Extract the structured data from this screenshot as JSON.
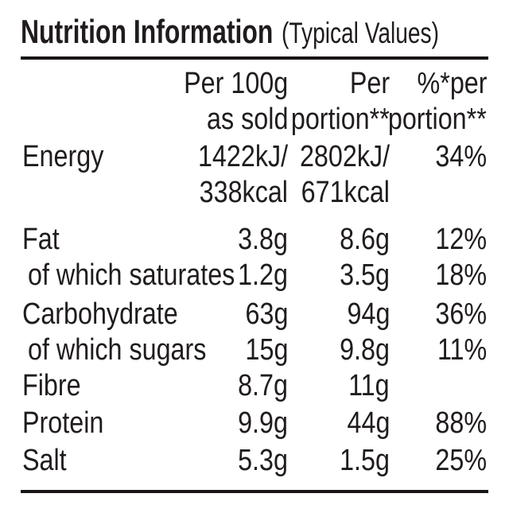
{
  "title": {
    "main": "Nutrition Information",
    "sub": "(Typical Values)"
  },
  "table": {
    "header": {
      "per100g": [
        "Per 100g",
        "as sold"
      ],
      "portion": [
        "Per",
        "portion**"
      ],
      "percent": [
        "%*per",
        "portion**"
      ]
    },
    "rows": [
      {
        "label": "Energy",
        "per100g": [
          "1422kJ/",
          "338kcal"
        ],
        "portion": [
          "2802kJ/",
          "671kcal"
        ],
        "percent": [
          "34%"
        ]
      },
      {
        "label": "Fat",
        "per100g": [
          "3.8g"
        ],
        "portion": [
          "8.6g"
        ],
        "percent": [
          "12%"
        ]
      },
      {
        "label": "of which saturates",
        "per100g": [
          "1.2g"
        ],
        "portion": [
          "3.5g"
        ],
        "percent": [
          "18%"
        ]
      },
      {
        "label": "Carbohydrate",
        "per100g": [
          "63g"
        ],
        "portion": [
          "94g"
        ],
        "percent": [
          "36%"
        ]
      },
      {
        "label": "of which sugars",
        "per100g": [
          "15g"
        ],
        "portion": [
          "9.8g"
        ],
        "percent": [
          "11%"
        ]
      },
      {
        "label": "Fibre",
        "per100g": [
          "8.7g"
        ],
        "portion": [
          "11g"
        ],
        "percent": [
          ""
        ]
      },
      {
        "label": "Protein",
        "per100g": [
          "9.9g"
        ],
        "portion": [
          "44g"
        ],
        "percent": [
          "88%"
        ]
      },
      {
        "label": "Salt",
        "per100g": [
          "5.3g"
        ],
        "portion": [
          "1.5g"
        ],
        "percent": [
          "25%"
        ]
      }
    ]
  },
  "colors": {
    "background": "#ffffff",
    "text": "#201c1d",
    "rule": "#191515"
  }
}
